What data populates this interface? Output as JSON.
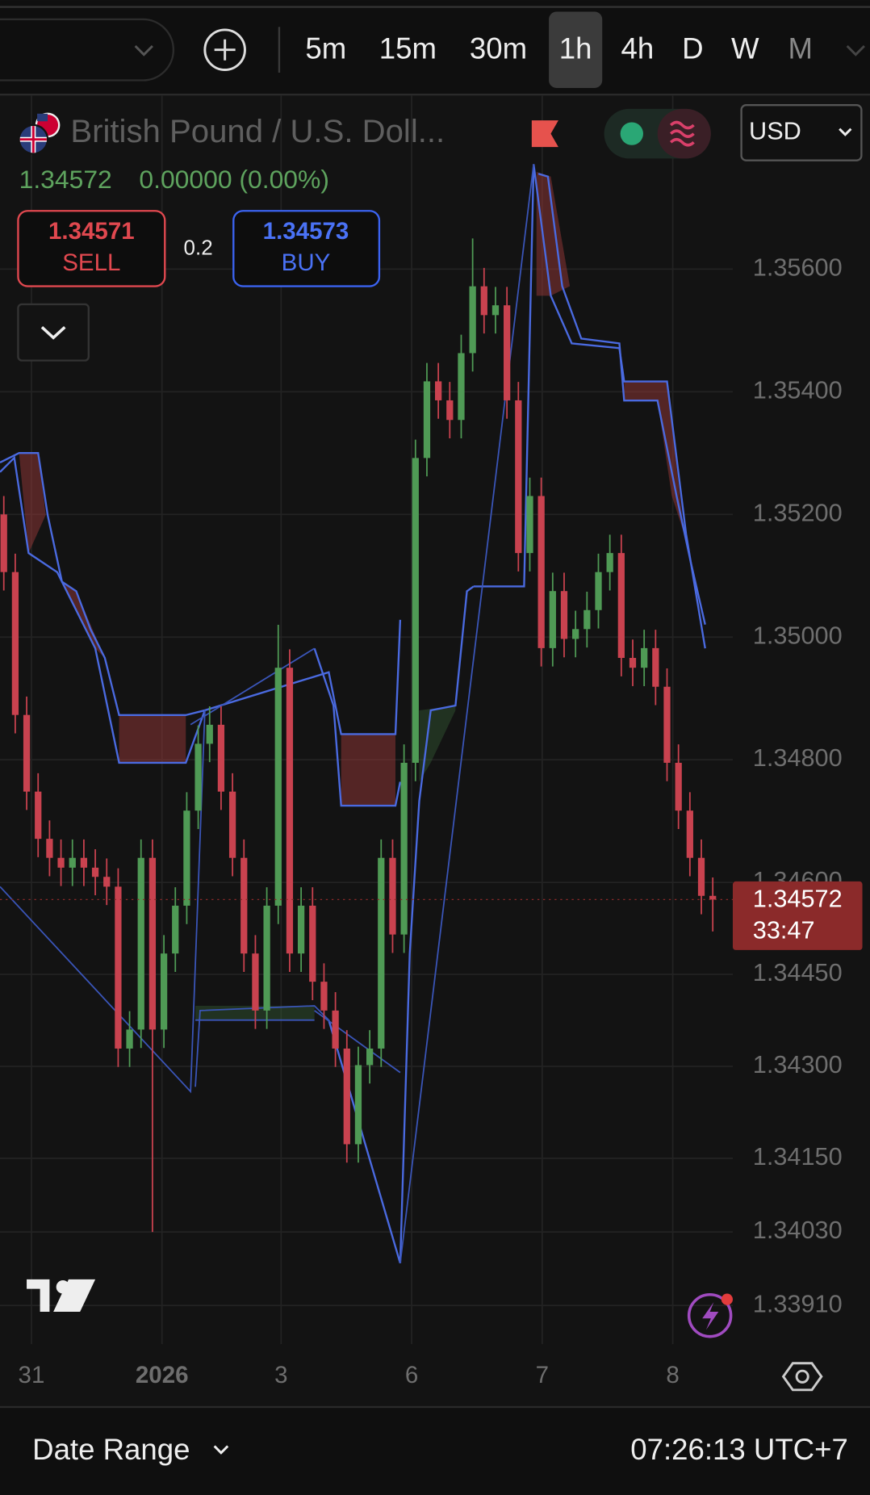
{
  "top_bar": {
    "intervals": [
      "5m",
      "15m",
      "30m",
      "1h",
      "4h",
      "D",
      "W",
      "M"
    ],
    "selected_index": 3
  },
  "symbol": {
    "name": "British Pound / U.S. Doll...",
    "price": "1.34572",
    "change": "0.00000 (0.00%)",
    "currency": "USD"
  },
  "trade": {
    "sell_price": "1.34571",
    "sell_label": "SELL",
    "spread": "0.2",
    "buy_price": "1.34573",
    "buy_label": "BUY"
  },
  "chart": {
    "type": "candlestick",
    "up_color": "#4f9a55",
    "down_color": "#c9424f",
    "candles": [
      [
        1.352,
        1.3523,
        1.35076,
        1.35106
      ],
      [
        1.35106,
        1.35136,
        1.34843,
        1.34873
      ],
      [
        1.34873,
        1.34903,
        1.34718,
        1.34748
      ],
      [
        1.34748,
        1.34778,
        1.34641,
        1.34671
      ],
      [
        1.34671,
        1.34701,
        1.3461,
        1.3464
      ],
      [
        1.3464,
        1.3467,
        1.34594,
        1.34624
      ],
      [
        1.34624,
        1.3467,
        1.34594,
        1.3464
      ],
      [
        1.3464,
        1.3467,
        1.34594,
        1.34624
      ],
      [
        1.34624,
        1.34654,
        1.34579,
        1.34609
      ],
      [
        1.34609,
        1.34639,
        1.34563,
        1.34593
      ],
      [
        1.34593,
        1.34623,
        1.34299,
        1.34329
      ],
      [
        1.34329,
        1.3439,
        1.34299,
        1.3436
      ],
      [
        1.3436,
        1.3467,
        1.3433,
        1.3464
      ],
      [
        1.3464,
        1.3467,
        1.3403,
        1.3436
      ],
      [
        1.3436,
        1.34514,
        1.3433,
        1.34484
      ],
      [
        1.34484,
        1.34592,
        1.34454,
        1.34562
      ],
      [
        1.34562,
        1.34747,
        1.34532,
        1.34717
      ],
      [
        1.34717,
        1.34856,
        1.34687,
        1.34826
      ],
      [
        1.34826,
        1.34887,
        1.34796,
        1.34857
      ],
      [
        1.34857,
        1.34887,
        1.34718,
        1.34748
      ],
      [
        1.34748,
        1.34778,
        1.3461,
        1.3464
      ],
      [
        1.3464,
        1.3467,
        1.34454,
        1.34484
      ],
      [
        1.34484,
        1.34514,
        1.34361,
        1.34391
      ],
      [
        1.34391,
        1.34592,
        1.34361,
        1.34562
      ],
      [
        1.34562,
        1.3502,
        1.34532,
        1.3495
      ],
      [
        1.3495,
        1.3498,
        1.34454,
        1.34484
      ],
      [
        1.34484,
        1.34592,
        1.34454,
        1.34562
      ],
      [
        1.34562,
        1.34592,
        1.34408,
        1.34438
      ],
      [
        1.34438,
        1.34468,
        1.34361,
        1.34391
      ],
      [
        1.34391,
        1.34421,
        1.34299,
        1.34329
      ],
      [
        1.34329,
        1.34359,
        1.34143,
        1.34173
      ],
      [
        1.34173,
        1.34332,
        1.34143,
        1.34302
      ],
      [
        1.34302,
        1.34359,
        1.34272,
        1.34329
      ],
      [
        1.34329,
        1.3467,
        1.34299,
        1.3464
      ],
      [
        1.3464,
        1.3467,
        1.34485,
        1.34515
      ],
      [
        1.34515,
        1.34825,
        1.34485,
        1.34795
      ],
      [
        1.34795,
        1.35322,
        1.34765,
        1.35292
      ],
      [
        1.35292,
        1.35447,
        1.35262,
        1.35417
      ],
      [
        1.35417,
        1.35447,
        1.35356,
        1.35386
      ],
      [
        1.35386,
        1.35416,
        1.35324,
        1.35354
      ],
      [
        1.35354,
        1.35493,
        1.35324,
        1.35463
      ],
      [
        1.35463,
        1.3565,
        1.35433,
        1.35572
      ],
      [
        1.35572,
        1.35602,
        1.35495,
        1.35525
      ],
      [
        1.35525,
        1.35571,
        1.35495,
        1.35541
      ],
      [
        1.35541,
        1.35571,
        1.35356,
        1.35386
      ],
      [
        1.35386,
        1.35416,
        1.35107,
        1.35137
      ],
      [
        1.35137,
        1.3526,
        1.35107,
        1.3523
      ],
      [
        1.3523,
        1.3526,
        1.34952,
        1.34982
      ],
      [
        1.34982,
        1.35105,
        1.34952,
        1.35075
      ],
      [
        1.35075,
        1.35105,
        1.34967,
        1.34997
      ],
      [
        1.34997,
        1.35043,
        1.34967,
        1.35013
      ],
      [
        1.35013,
        1.35074,
        1.34983,
        1.35044
      ],
      [
        1.35044,
        1.35136,
        1.35014,
        1.35106
      ],
      [
        1.35106,
        1.35167,
        1.35076,
        1.35137
      ],
      [
        1.35137,
        1.35167,
        1.34936,
        1.34966
      ],
      [
        1.34966,
        1.34996,
        1.3492,
        1.3495
      ],
      [
        1.3495,
        1.35012,
        1.3492,
        1.34982
      ],
      [
        1.34982,
        1.35012,
        1.34889,
        1.34919
      ],
      [
        1.34919,
        1.34949,
        1.34765,
        1.34795
      ],
      [
        1.34795,
        1.34825,
        1.34687,
        1.34717
      ],
      [
        1.34717,
        1.34747,
        1.3461,
        1.3464
      ],
      [
        1.3464,
        1.3467,
        1.34548,
        1.34578
      ],
      [
        1.34578,
        1.34608,
        1.3452,
        1.34572
      ]
    ],
    "ylim": [
      1.33847,
      1.35883
    ],
    "yticks": [
      {
        "value": 1.356,
        "label": "1.35600"
      },
      {
        "value": 1.354,
        "label": "1.35400"
      },
      {
        "value": 1.352,
        "label": "1.35200"
      },
      {
        "value": 1.35,
        "label": "1.35000"
      },
      {
        "value": 1.348,
        "label": "1.34800"
      },
      {
        "value": 1.346,
        "label": "1.34600"
      },
      {
        "value": 1.3445,
        "label": "1.34450"
      },
      {
        "value": 1.343,
        "label": "1.34300"
      },
      {
        "value": 1.3415,
        "label": "1.34150"
      },
      {
        "value": 1.3403,
        "label": "1.34030"
      },
      {
        "value": 1.3391,
        "label": "1.33910"
      }
    ],
    "xticks": [
      "31",
      "2026",
      "3",
      "6",
      "7",
      "8"
    ],
    "last_price_label": "1.34572",
    "countdown": "33:47"
  },
  "footer": {
    "date_range": "Date Range",
    "time": "07:26:13 UTC+7"
  }
}
